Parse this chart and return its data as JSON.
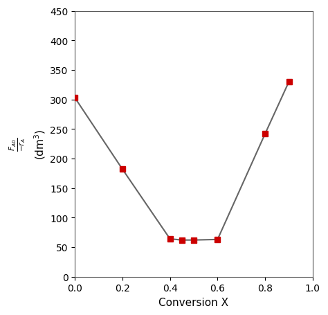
{
  "x": [
    0.0,
    0.2,
    0.4,
    0.45,
    0.5,
    0.6,
    0.8,
    0.9
  ],
  "y": [
    303,
    182,
    64,
    62,
    62,
    63,
    242,
    330
  ],
  "line_color": "#666666",
  "marker_color": "#cc0000",
  "marker_style": "s",
  "marker_size": 6,
  "xlabel": "Conversion X",
  "ylabel_line1": "$\\frac{F_{A0}}{-r_A}$",
  "ylabel_line2": "(dm$^3$)",
  "xlim": [
    0.0,
    1.0
  ],
  "ylim": [
    0,
    450
  ],
  "xticks": [
    0.0,
    0.2,
    0.4,
    0.6,
    0.8,
    1.0
  ],
  "yticks": [
    0,
    50,
    100,
    150,
    200,
    250,
    300,
    350,
    400,
    450
  ],
  "figsize": [
    4.74,
    4.56
  ],
  "dpi": 100,
  "background_color": "#ffffff",
  "spine_color": "#555555",
  "xlabel_fontsize": 11,
  "ylabel_fontsize": 11,
  "tick_fontsize": 10
}
